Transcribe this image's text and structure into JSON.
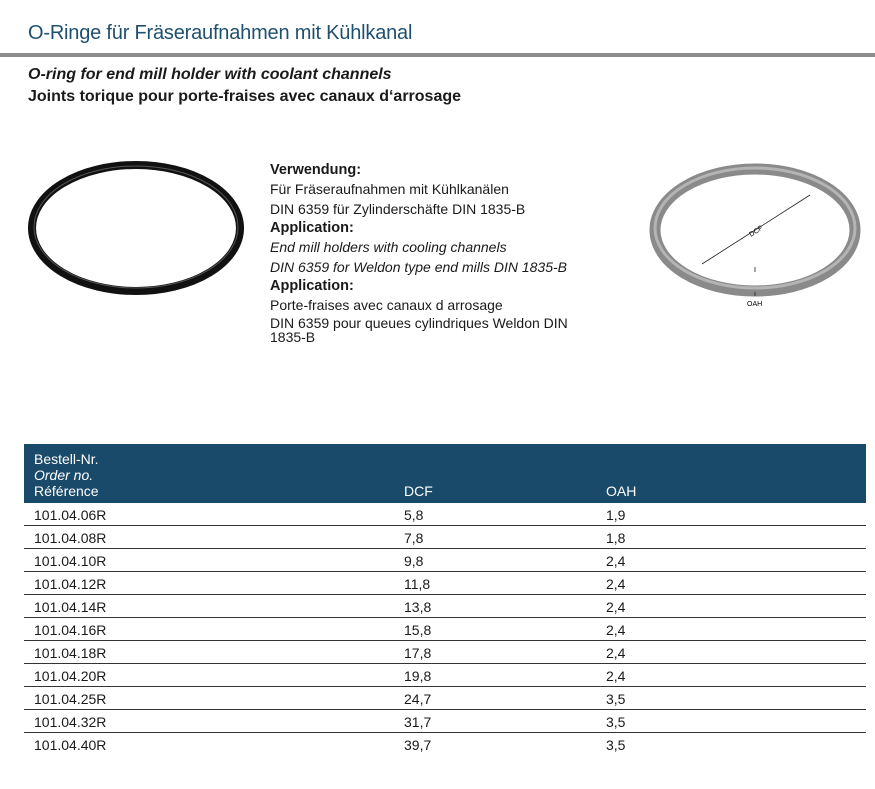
{
  "title": "O-Ringe für Fräseraufnahmen mit Kühlkanal",
  "subtitle_en": "O-ring for end mill holder with coolant channels",
  "subtitle_fr": "Joints torique pour porte-fraises avec canaux d‘arrosage",
  "info": [
    {
      "heading": "Verwendung:",
      "lines": [
        "Für Fräseraufnahmen mit Kühlkanälen",
        "DIN 6359 für Zylinderschäfte DIN 1835-B"
      ],
      "italic": false
    },
    {
      "heading": "Application:",
      "lines": [
        "End mill holders with cooling channels",
        "DIN 6359 for Weldon type end mills DIN 1835-B"
      ],
      "italic": true
    },
    {
      "heading": "Application:",
      "lines": [
        "Porte-fraises avec canaux d arrosage",
        "DIN 6359 pour queues cylindriques Weldon DIN 1835-B"
      ],
      "italic": false
    }
  ],
  "diagram": {
    "dcf_label": "DCF",
    "oah_label": "OAH"
  },
  "table": {
    "header": {
      "order_de": "Bestell-Nr.",
      "order_en": "Order no.",
      "order_fr": "Référence",
      "dcf": "DCF",
      "oah": "OAH"
    },
    "rows": [
      [
        "101.04.06R",
        "5,8",
        "1,9"
      ],
      [
        "101.04.08R",
        "7,8",
        "1,8"
      ],
      [
        "101.04.10R",
        "9,8",
        "2,4"
      ],
      [
        "101.04.12R",
        "11,8",
        "2,4"
      ],
      [
        "101.04.14R",
        "13,8",
        "2,4"
      ],
      [
        "101.04.16R",
        "15,8",
        "2,4"
      ],
      [
        "101.04.18R",
        "17,8",
        "2,4"
      ],
      [
        "101.04.20R",
        "19,8",
        "2,4"
      ],
      [
        "101.04.25R",
        "24,7",
        "3,5"
      ],
      [
        "101.04.32R",
        "31,7",
        "3,5"
      ],
      [
        "101.04.40R",
        "39,7",
        "3,5"
      ]
    ]
  },
  "colors": {
    "title": "#1f5070",
    "table_header": "#1a4a6a",
    "rule": "#8c8c8c"
  }
}
